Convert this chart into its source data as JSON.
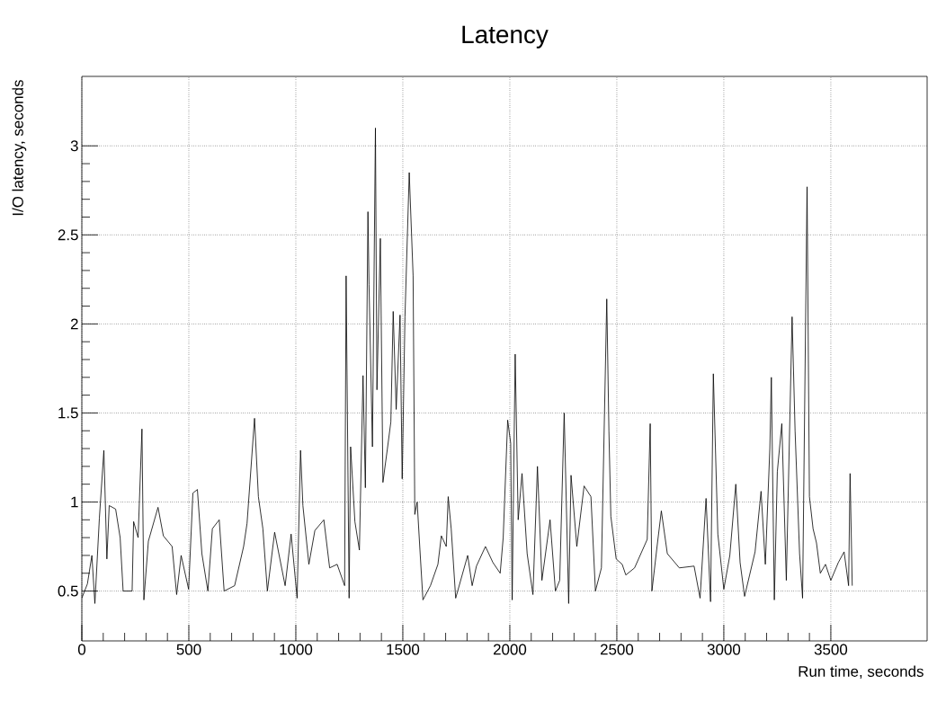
{
  "chart_data": {
    "type": "line",
    "title": "Latency",
    "xlabel": "Run time, seconds",
    "ylabel": "I/O latency, seconds",
    "color": "#000000",
    "grid": true,
    "xlim": [
      0,
      3950
    ],
    "ylim": [
      0.22,
      3.39
    ],
    "xticks": [
      0,
      500,
      1000,
      1500,
      2000,
      2500,
      3000,
      3500
    ],
    "yticks": [
      0.5,
      1,
      1.5,
      2,
      2.5,
      3
    ],
    "x": [
      0,
      26,
      47,
      61,
      82,
      103,
      117,
      128,
      158,
      179,
      193,
      235,
      242,
      263,
      281,
      290,
      311,
      356,
      381,
      422,
      443,
      464,
      499,
      519,
      540,
      561,
      589,
      610,
      642,
      665,
      714,
      756,
      772,
      807,
      825,
      846,
      867,
      901,
      950,
      978,
      1006,
      1022,
      1033,
      1061,
      1089,
      1131,
      1158,
      1193,
      1228,
      1235,
      1249,
      1256,
      1276,
      1297,
      1314,
      1325,
      1337,
      1342,
      1358,
      1372,
      1379,
      1395,
      1407,
      1428,
      1444,
      1455,
      1469,
      1487,
      1497,
      1510,
      1530,
      1548,
      1556,
      1567,
      1580,
      1594,
      1629,
      1664,
      1680,
      1703,
      1712,
      1726,
      1747,
      1803,
      1824,
      1844,
      1886,
      1921,
      1955,
      1969,
      1990,
      2004,
      2011,
      2025,
      2039,
      2057,
      2081,
      2108,
      2129,
      2150,
      2188,
      2213,
      2233,
      2254,
      2275,
      2286,
      2313,
      2347,
      2379,
      2400,
      2428,
      2453,
      2463,
      2472,
      2497,
      2525,
      2542,
      2583,
      2642,
      2656,
      2664,
      2688,
      2708,
      2736,
      2792,
      2861,
      2889,
      2917,
      2938,
      2951,
      2972,
      3000,
      3028,
      3056,
      3076,
      3097,
      3146,
      3174,
      3194,
      3215,
      3222,
      3236,
      3250,
      3271,
      3292,
      3319,
      3333,
      3354,
      3368,
      3389,
      3400,
      3417,
      3433,
      3451,
      3475,
      3500,
      3535,
      3562,
      3583,
      3590,
      3600
    ],
    "values": [
      0.46,
      0.54,
      0.7,
      0.43,
      0.91,
      1.29,
      0.68,
      0.98,
      0.96,
      0.8,
      0.5,
      0.5,
      0.89,
      0.8,
      1.41,
      0.45,
      0.78,
      0.97,
      0.81,
      0.75,
      0.48,
      0.7,
      0.51,
      1.05,
      1.07,
      0.71,
      0.5,
      0.85,
      0.9,
      0.5,
      0.53,
      0.75,
      0.88,
      1.47,
      1.03,
      0.85,
      0.5,
      0.83,
      0.53,
      0.82,
      0.46,
      1.29,
      0.98,
      0.65,
      0.84,
      0.9,
      0.63,
      0.65,
      0.53,
      2.27,
      0.46,
      1.31,
      0.89,
      0.73,
      1.71,
      1.08,
      2.63,
      2.22,
      1.31,
      3.1,
      1.63,
      2.48,
      1.11,
      1.3,
      1.45,
      2.07,
      1.52,
      2.05,
      1.13,
      2.04,
      2.85,
      2.27,
      0.93,
      1.0,
      0.73,
      0.45,
      0.53,
      0.65,
      0.81,
      0.75,
      1.03,
      0.85,
      0.46,
      0.7,
      0.53,
      0.64,
      0.75,
      0.66,
      0.6,
      0.8,
      1.46,
      1.33,
      0.45,
      1.83,
      0.9,
      1.16,
      0.71,
      0.48,
      1.2,
      0.56,
      0.9,
      0.5,
      0.56,
      1.5,
      0.43,
      1.15,
      0.75,
      1.09,
      1.03,
      0.5,
      0.63,
      2.14,
      1.4,
      0.92,
      0.68,
      0.65,
      0.59,
      0.63,
      0.79,
      1.44,
      0.5,
      0.75,
      0.95,
      0.71,
      0.63,
      0.64,
      0.46,
      1.02,
      0.44,
      1.72,
      0.82,
      0.51,
      0.7,
      1.1,
      0.66,
      0.47,
      0.72,
      1.06,
      0.65,
      1.3,
      1.7,
      0.45,
      1.17,
      1.44,
      0.56,
      2.04,
      1.4,
      0.71,
      0.46,
      2.77,
      1.03,
      0.85,
      0.77,
      0.6,
      0.65,
      0.56,
      0.66,
      0.72,
      0.53,
      1.16,
      0.53
    ]
  }
}
